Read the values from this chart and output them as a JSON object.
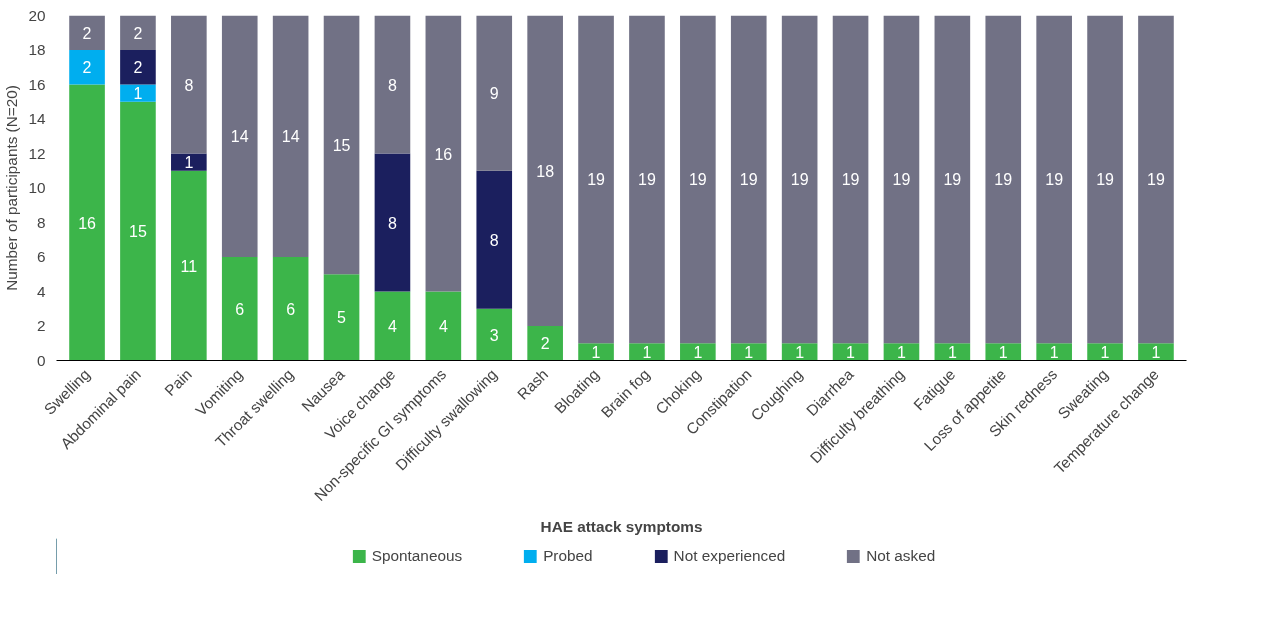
{
  "chart_data": {
    "type": "bar",
    "stacked": true,
    "xlabel": "HAE attack symptoms",
    "ylabel": "Number of participants (N=20)",
    "categories": [
      "Swelling",
      "Abdominal pain",
      "Pain",
      "Vomiting",
      "Throat swelling",
      "Nausea",
      "Voice change",
      "Non-specific GI symptoms",
      "Difficulty swallowing",
      "Rash",
      "Bloating",
      "Brain fog",
      "Choking",
      "Constipation",
      "Coughing",
      "Diarrhea",
      "Difficulty breathing",
      "Fatigue",
      "Loss of appetite",
      "Skin redness",
      "Sweating",
      "Temperature change"
    ],
    "series": [
      {
        "name": "Spontaneous",
        "color": "#3cb54a",
        "values": [
          16,
          15,
          11,
          6,
          6,
          5,
          4,
          4,
          3,
          2,
          1,
          1,
          1,
          1,
          1,
          1,
          1,
          1,
          1,
          1,
          1,
          1
        ],
        "value_labels": [
          "16",
          "15",
          "11",
          "6",
          "6",
          "5",
          "4",
          "4",
          "3",
          "2",
          "1",
          "1",
          "1",
          "1",
          "1",
          "1",
          "1",
          "1",
          "1",
          "1",
          "1",
          "1"
        ]
      },
      {
        "name": "Probed",
        "color": "#00aeef",
        "values": [
          2,
          1,
          0,
          0,
          0,
          0,
          0,
          0,
          0,
          0,
          0,
          0,
          0,
          0,
          0,
          0,
          0,
          0,
          0,
          0,
          0,
          0
        ],
        "value_labels": [
          "2",
          "1",
          null,
          null,
          null,
          null,
          null,
          null,
          null,
          null,
          null,
          null,
          null,
          null,
          null,
          null,
          null,
          null,
          null,
          null,
          null,
          null
        ]
      },
      {
        "name": "Not experienced",
        "color": "#1b1f5e",
        "values": [
          0,
          2,
          1,
          0,
          0,
          0,
          8,
          0,
          8,
          0,
          0,
          0,
          0,
          0,
          0,
          0,
          0,
          0,
          0,
          0,
          0,
          0
        ],
        "value_labels": [
          null,
          "2",
          "1",
          null,
          null,
          null,
          "8",
          null,
          "8",
          null,
          null,
          null,
          null,
          null,
          null,
          null,
          null,
          null,
          null,
          null,
          null,
          null
        ]
      },
      {
        "name": "Not asked",
        "color": "#717185",
        "values": [
          2,
          2,
          8,
          14,
          14,
          15,
          8,
          16,
          9,
          18,
          19,
          19,
          19,
          19,
          19,
          19,
          19,
          19,
          19,
          19,
          19,
          19
        ],
        "value_labels": [
          "2",
          "2",
          "8",
          "14",
          "14",
          "15",
          "8",
          "16",
          "9",
          "18",
          "19",
          "19",
          "19",
          "19",
          "19",
          "19",
          "19",
          "19",
          "19",
          "19",
          "19",
          "19"
        ]
      }
    ],
    "ylim": [
      0,
      20
    ],
    "yticks": [
      0,
      2,
      4,
      6,
      8,
      10,
      12,
      14,
      16,
      18,
      20
    ],
    "grid": false,
    "legend": "bottom"
  }
}
